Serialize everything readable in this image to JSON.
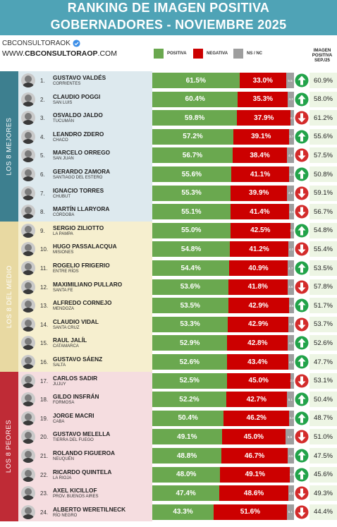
{
  "header": {
    "title_line1": "RANKING DE IMAGEN POSITIVA",
    "title_line2": "GOBERNADORES - NOVIEMBRE 2025"
  },
  "brand": {
    "handle": "CBCONSULTORAOK",
    "site_www": "WWW.",
    "site_name": "CBCONSULTORAOP",
    "site_tld": ".COM"
  },
  "colors": {
    "header": "#4fa3b6",
    "positive": "#6aa84f",
    "negative": "#cc0000",
    "ns": "#9e9e9e",
    "group_best_box": "#dde9ee",
    "group_best_label": "#3d7f8f",
    "group_mid_box": "#f6efcf",
    "group_mid_label": "#e8d9a2",
    "group_worst_box": "#f5dde0",
    "group_worst_label": "#bf2b36",
    "arrow_up": "#22a34a",
    "arrow_down": "#d32b2b"
  },
  "legend": {
    "positive": "POSITIVA",
    "negative": "NEGATIVA",
    "ns": "NS / NC"
  },
  "sep_header": {
    "line1": "IMAGEN",
    "line2": "POSITIVA",
    "line3": "SEP./25"
  },
  "groups": [
    {
      "label": "LOS 8 MEJORES"
    },
    {
      "label": "LOS 8 DEL MEDIO"
    },
    {
      "label": "LOS 8 PEORES"
    }
  ],
  "chart_data": {
    "type": "bar",
    "stacked": true,
    "title": "RANKING DE IMAGEN POSITIVA GOBERNADORES - NOVIEMBRE 2025",
    "series_names": [
      "POSITIVA",
      "NEGATIVA",
      "NS / NC"
    ],
    "rows": [
      {
        "rank": "1.",
        "name": "GUSTAVO VALDÉS",
        "province": "CORRIENTES",
        "positive": 61.5,
        "positive_label": "61.5%",
        "negative": 33.0,
        "negative_label": "33.0%",
        "ns": 5.5,
        "ns_label": "5.5",
        "trend": "up",
        "sep": "60.9%",
        "group": 0
      },
      {
        "rank": "2.",
        "name": "CLAUDIO POGGI",
        "province": "SAN LUIS",
        "positive": 60.4,
        "positive_label": "60.4%",
        "negative": 35.3,
        "negative_label": "35.3%",
        "ns": 4.3,
        "ns_label": "4.3",
        "trend": "up",
        "sep": "58.0%",
        "group": 0
      },
      {
        "rank": "3.",
        "name": "OSVALDO JALDO",
        "province": "TUCUMÁN",
        "positive": 59.8,
        "positive_label": "59.8%",
        "negative": 37.9,
        "negative_label": "37.9%",
        "ns": 2.3,
        "ns_label": "2.3",
        "trend": "down",
        "sep": "61.2%",
        "group": 0
      },
      {
        "rank": "4.",
        "name": "LEANDRO ZDERO",
        "province": "CHACO",
        "positive": 57.2,
        "positive_label": "57.2%",
        "negative": 39.1,
        "negative_label": "39.1%",
        "ns": 3.7,
        "ns_label": "3.7",
        "trend": "up",
        "sep": "55.6%",
        "group": 0
      },
      {
        "rank": "5.",
        "name": "MARCELO ORREGO",
        "province": "SAN JUAN",
        "positive": 56.7,
        "positive_label": "56.7%",
        "negative": 38.4,
        "negative_label": "38.4%",
        "ns": 4.9,
        "ns_label": "4.9",
        "trend": "down",
        "sep": "57.5%",
        "group": 0
      },
      {
        "rank": "6.",
        "name": "GERARDO ZAMORA",
        "province": "SANTIAGO DEL ESTERO",
        "positive": 55.6,
        "positive_label": "55.6%",
        "negative": 41.1,
        "negative_label": "41.1%",
        "ns": 3.3,
        "ns_label": "3.3",
        "trend": "up",
        "sep": "50.8%",
        "group": 0
      },
      {
        "rank": "7.",
        "name": "IGNACIO TORRES",
        "province": "CHUBUT",
        "positive": 55.3,
        "positive_label": "55.3%",
        "negative": 39.9,
        "negative_label": "39.9%",
        "ns": 4.8,
        "ns_label": "4.8",
        "trend": "down",
        "sep": "59.1%",
        "group": 0
      },
      {
        "rank": "8.",
        "name": "MARTÍN LLARYORA",
        "province": "CÓRDOBA",
        "positive": 55.1,
        "positive_label": "55.1%",
        "negative": 41.4,
        "negative_label": "41.4%",
        "ns": 3.5,
        "ns_label": "3.5",
        "trend": "down",
        "sep": "56.7%",
        "group": 0
      },
      {
        "rank": "9.",
        "name": "SERGIO ZILIOTTO",
        "province": "LA PAMPA",
        "positive": 55.0,
        "positive_label": "55.0%",
        "negative": 42.5,
        "negative_label": "42.5%",
        "ns": 2.5,
        "ns_label": "2.5",
        "trend": "up",
        "sep": "54.8%",
        "group": 1
      },
      {
        "rank": "10.",
        "name": "HUGO PASSALACQUA",
        "province": "MISIONES",
        "positive": 54.8,
        "positive_label": "54.8%",
        "negative": 41.2,
        "negative_label": "41.2%",
        "ns": 4.0,
        "ns_label": "4.0",
        "trend": "down",
        "sep": "55.4%",
        "group": 1
      },
      {
        "rank": "11.",
        "name": "ROGELIO FRIGERIO",
        "province": "ENTRE RÍOS",
        "positive": 54.4,
        "positive_label": "54.4%",
        "negative": 40.9,
        "negative_label": "40.9%",
        "ns": 4.7,
        "ns_label": "4.7",
        "trend": "up",
        "sep": "53.5%",
        "group": 1
      },
      {
        "rank": "12.",
        "name": "MAXIMILIANO PULLARO",
        "province": "SANTA FE",
        "positive": 53.6,
        "positive_label": "53.6%",
        "negative": 41.8,
        "negative_label": "41.8%",
        "ns": 4.6,
        "ns_label": "4.6",
        "trend": "down",
        "sep": "57.8%",
        "group": 1
      },
      {
        "rank": "13.",
        "name": "ALFREDO CORNEJO",
        "province": "MENDOZA",
        "positive": 53.5,
        "positive_label": "53.5%",
        "negative": 42.9,
        "negative_label": "42.9%",
        "ns": 3.6,
        "ns_label": "3.6",
        "trend": "up",
        "sep": "51.7%",
        "group": 1
      },
      {
        "rank": "14.",
        "name": "CLAUDIO VIDAL",
        "province": "SANTA CRUZ",
        "positive": 53.3,
        "positive_label": "53.3%",
        "negative": 42.9,
        "negative_label": "42.9%",
        "ns": 3.8,
        "ns_label": "3.8",
        "trend": "down",
        "sep": "53.7%",
        "group": 1
      },
      {
        "rank": "15.",
        "name": "RAUL JALÍL",
        "province": "CATAMARCA",
        "positive": 52.9,
        "positive_label": "52.9%",
        "negative": 42.8,
        "negative_label": "42.8%",
        "ns": 4.3,
        "ns_label": "4.3",
        "trend": "up",
        "sep": "52.6%",
        "group": 1
      },
      {
        "rank": "16.",
        "name": "GUSTAVO SÁENZ",
        "province": "SALTA",
        "positive": 52.6,
        "positive_label": "52.6%",
        "negative": 43.4,
        "negative_label": "43.4%",
        "ns": 4.0,
        "ns_label": "4.0",
        "trend": "up",
        "sep": "47.7%",
        "group": 1
      },
      {
        "rank": "17.",
        "name": "CARLOS SADIR",
        "province": "JUJUY",
        "positive": 52.5,
        "positive_label": "52.5%",
        "negative": 45.0,
        "negative_label": "45.0%",
        "ns": 2.5,
        "ns_label": "2.5",
        "trend": "down",
        "sep": "53.1%",
        "group": 2
      },
      {
        "rank": "18.",
        "name": "GILDO INSFRÁN",
        "province": "FORMOSA",
        "positive": 52.2,
        "positive_label": "52.2%",
        "negative": 42.7,
        "negative_label": "42.7%",
        "ns": 5.1,
        "ns_label": "5.1",
        "trend": "up",
        "sep": "50.4%",
        "group": 2
      },
      {
        "rank": "19.",
        "name": "JORGE MACRI",
        "province": "CABA",
        "positive": 50.4,
        "positive_label": "50.4%",
        "negative": 46.2,
        "negative_label": "46.2%",
        "ns": 3.4,
        "ns_label": "3.4",
        "trend": "up",
        "sep": "48.7%",
        "group": 2
      },
      {
        "rank": "20.",
        "name": "GUSTAVO MELELLA",
        "province": "TIERRA DEL FUEGO",
        "positive": 49.1,
        "positive_label": "49.1%",
        "negative": 45.0,
        "negative_label": "45.0%",
        "ns": 5.9,
        "ns_label": "5.9",
        "trend": "down",
        "sep": "51.0%",
        "group": 2
      },
      {
        "rank": "21.",
        "name": "ROLANDO FIGUEROA",
        "province": "NEUQUÉN",
        "positive": 48.8,
        "positive_label": "48.8%",
        "negative": 46.7,
        "negative_label": "46.7%",
        "ns": 4.5,
        "ns_label": "4.5",
        "trend": "up",
        "sep": "47.5%",
        "group": 2
      },
      {
        "rank": "22.",
        "name": "RICARDO QUINTELA",
        "province": "LA RIOJA",
        "positive": 48.0,
        "positive_label": "48.0%",
        "negative": 49.1,
        "negative_label": "49.1%",
        "ns": 2.9,
        "ns_label": "2.9",
        "trend": "up",
        "sep": "45.6%",
        "group": 2
      },
      {
        "rank": "23.",
        "name": "AXEL KICILLOF",
        "province": "PROV. BUENOS AIRES",
        "positive": 47.4,
        "positive_label": "47.4%",
        "negative": 48.6,
        "negative_label": "48.6%",
        "ns": 4.0,
        "ns_label": "4.0",
        "trend": "down",
        "sep": "49.3%",
        "group": 2
      },
      {
        "rank": "24.",
        "name": "ALBERTO WERETILNECK",
        "province": "RÍO NEGRO",
        "positive": 43.3,
        "positive_label": "43.3%",
        "negative": 51.6,
        "negative_label": "51.6%",
        "ns": 5.1,
        "ns_label": "5.1",
        "trend": "down",
        "sep": "44.4%",
        "group": 2
      }
    ]
  }
}
